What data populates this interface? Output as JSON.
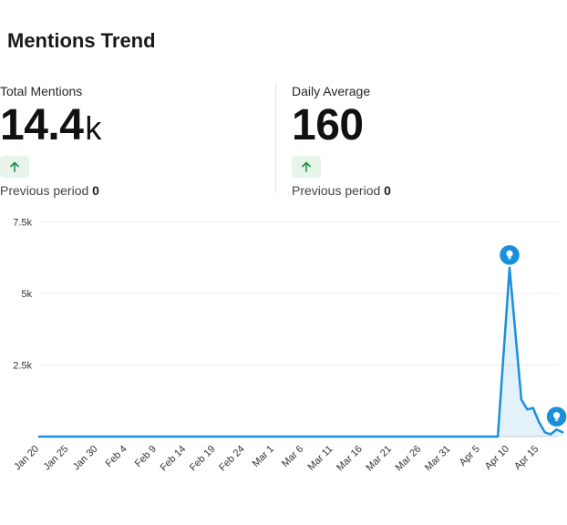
{
  "header": {
    "title": "Mentions Trend"
  },
  "stats": [
    {
      "label": "Total Mentions",
      "value": "14.4",
      "unit": "k",
      "trend_icon": "arrow-up-icon",
      "prev_label": "Previous period",
      "prev_value": "0"
    },
    {
      "label": "Daily Average",
      "value": "160",
      "unit": "",
      "trend_icon": "arrow-up-icon",
      "prev_label": "Previous period",
      "prev_value": "0"
    }
  ],
  "colors": {
    "line": "#1a8fdb",
    "marker": "#1a8fdb",
    "trend_up": "#1e8e3e",
    "badge_bg": "#e6f4ea",
    "grid": "#ececec"
  },
  "chart_data": {
    "type": "area",
    "title": "",
    "xlabel": "",
    "ylabel": "",
    "ylim": [
      0,
      7500
    ],
    "y_ticks": [
      2500,
      5000,
      7500
    ],
    "y_tick_labels": [
      "2.5k",
      "5k",
      "7.5k"
    ],
    "x_tick_labels": [
      "Jan 20",
      "Jan 25",
      "Jan 30",
      "Feb 4",
      "Feb 9",
      "Feb 14",
      "Feb 19",
      "Feb 24",
      "Mar 1",
      "Mar 6",
      "Mar 11",
      "Mar 16",
      "Mar 21",
      "Mar 26",
      "Mar 31",
      "Apr 5",
      "Apr 10",
      "Apr 15"
    ],
    "x_start": "Jan 20",
    "series": [
      {
        "points": [
          {
            "date": "Jan 20",
            "value": 0
          },
          {
            "date": "Apr 8",
            "value": 0
          },
          {
            "date": "Apr 10",
            "value": 5900
          },
          {
            "date": "Apr 12",
            "value": 1300
          },
          {
            "date": "Apr 13",
            "value": 950
          },
          {
            "date": "Apr 14",
            "value": 1000
          },
          {
            "date": "Apr 15",
            "value": 500
          },
          {
            "date": "Apr 16",
            "value": 150
          },
          {
            "date": "Apr 17",
            "value": 80
          },
          {
            "date": "Apr 18",
            "value": 250
          },
          {
            "date": "Apr 19",
            "value": 150
          }
        ]
      }
    ],
    "annotations": [
      {
        "date": "Apr 10",
        "value": 5900,
        "icon": "lightbulb-icon"
      },
      {
        "date": "Apr 18",
        "value": 250,
        "icon": "lightbulb-icon"
      }
    ]
  }
}
